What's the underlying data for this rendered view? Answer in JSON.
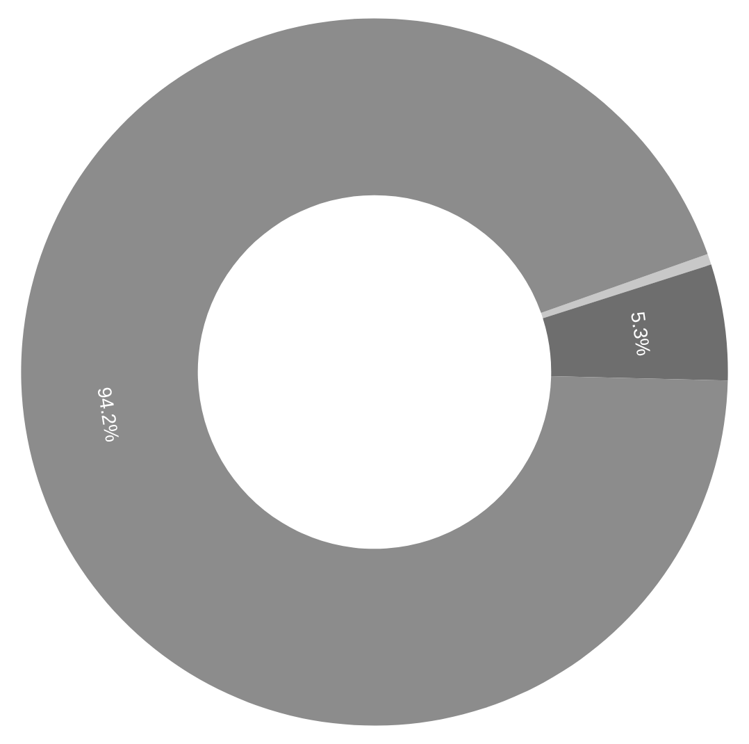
{
  "chart_data": {
    "type": "donut",
    "categories": [
      null,
      null,
      null
    ],
    "values": [
      0.5,
      5.3,
      94.2
    ],
    "colors": [
      "#c8c8c8",
      "#6e6e6e",
      "#8c8c8c"
    ],
    "value_labels": [
      null,
      "5.3%",
      "94.2%"
    ]
  }
}
